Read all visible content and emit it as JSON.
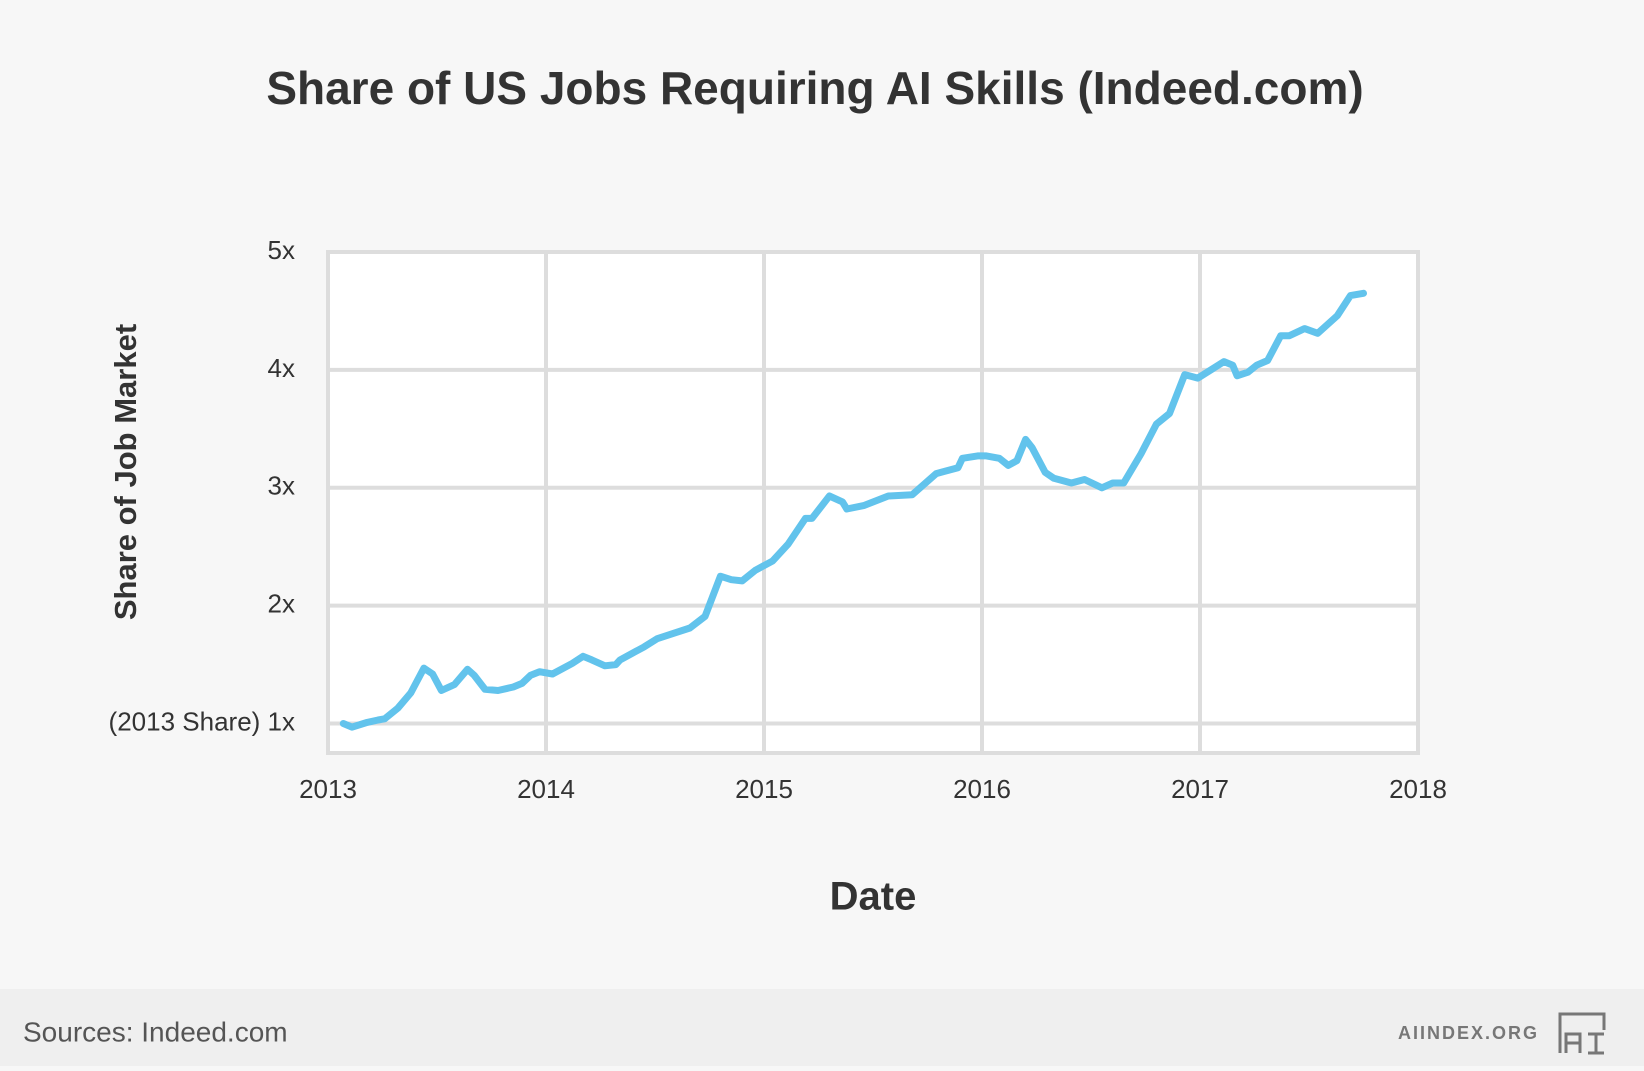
{
  "chart_data": {
    "type": "line",
    "title": "Share of US Jobs Requiring AI Skills (Indeed.com)",
    "x_label": "Date",
    "y_label": "Share of Job Market",
    "x": [
      2013.07,
      2013.11,
      2013.18,
      2013.23,
      2013.26,
      2013.32,
      2013.38,
      2013.44,
      2013.48,
      2013.52,
      2013.58,
      2013.64,
      2013.67,
      2013.72,
      2013.78,
      2013.85,
      2013.89,
      2013.93,
      2013.97,
      2014.03,
      2014.12,
      2014.17,
      2014.21,
      2014.27,
      2014.32,
      2014.34,
      2014.45,
      2014.51,
      2014.66,
      2014.73,
      2014.8,
      2014.85,
      2014.9,
      2014.96,
      2015.04,
      2015.11,
      2015.19,
      2015.22,
      2015.3,
      2015.36,
      2015.38,
      2015.46,
      2015.57,
      2015.68,
      2015.79,
      2015.83,
      2015.89,
      2015.91,
      2015.98,
      2016.02,
      2016.08,
      2016.12,
      2016.16,
      2016.2,
      2016.23,
      2016.29,
      2016.33,
      2016.41,
      2016.47,
      2016.55,
      2016.6,
      2016.65,
      2016.73,
      2016.8,
      2016.86,
      2016.93,
      2016.99,
      2017.05,
      2017.11,
      2017.15,
      2017.17,
      2017.22,
      2017.26,
      2017.31,
      2017.37,
      2017.41,
      2017.48,
      2017.54,
      2017.63,
      2017.69,
      2017.75
    ],
    "series": [
      {
        "color": "#62c3ec",
        "values": [
          1.0,
          0.97,
          1.01,
          1.03,
          1.04,
          1.13,
          1.26,
          1.47,
          1.42,
          1.28,
          1.33,
          1.46,
          1.41,
          1.29,
          1.28,
          1.31,
          1.34,
          1.41,
          1.44,
          1.42,
          1.51,
          1.57,
          1.54,
          1.49,
          1.5,
          1.54,
          1.65,
          1.72,
          1.81,
          1.91,
          2.25,
          2.22,
          2.21,
          2.3,
          2.38,
          2.52,
          2.74,
          2.74,
          2.93,
          2.88,
          2.82,
          2.85,
          2.93,
          2.94,
          3.12,
          3.14,
          3.17,
          3.25,
          3.27,
          3.27,
          3.25,
          3.19,
          3.23,
          3.41,
          3.34,
          3.13,
          3.08,
          3.04,
          3.07,
          3.0,
          3.04,
          3.04,
          3.29,
          3.54,
          3.63,
          3.96,
          3.93,
          4.0,
          4.07,
          4.04,
          3.95,
          3.98,
          4.04,
          4.08,
          4.29,
          4.29,
          4.35,
          4.31,
          4.46,
          4.63,
          4.65
        ]
      }
    ],
    "xlim": [
      2013,
      2018
    ],
    "xticks": [
      2013,
      2014,
      2015,
      2016,
      2017,
      2018
    ],
    "ylim": [
      0.75,
      5.0
    ],
    "yticks": [
      {
        "value": 1,
        "label": "(2013 Share) 1x"
      },
      {
        "value": 2,
        "label": "2x"
      },
      {
        "value": 3,
        "label": "3x"
      },
      {
        "value": 4,
        "label": "4x"
      },
      {
        "value": 5,
        "label": "5x"
      }
    ],
    "grid": true
  },
  "footer": {
    "source": "Sources: Indeed.com",
    "brand": "AIINDEX.ORG"
  }
}
